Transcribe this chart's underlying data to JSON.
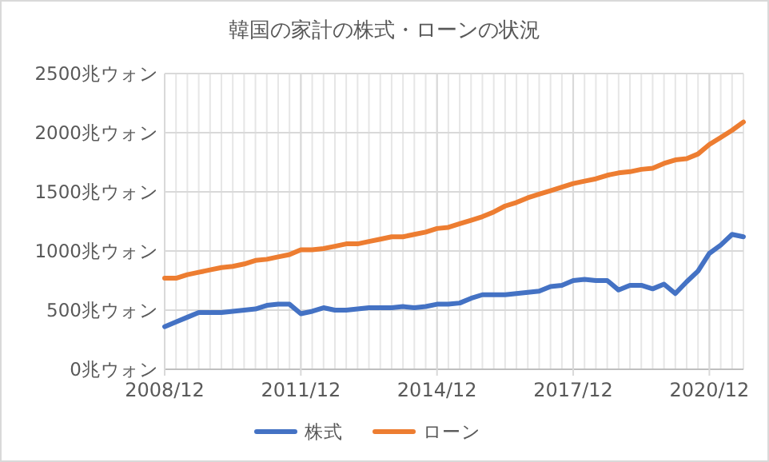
{
  "chart_data": {
    "type": "line",
    "title": "韓国の家計の株式・ローンの状況",
    "categories": [
      "2008/12",
      null,
      null,
      null,
      null,
      null,
      null,
      null,
      null,
      null,
      null,
      null,
      "2011/12",
      null,
      null,
      null,
      null,
      null,
      null,
      null,
      null,
      null,
      null,
      null,
      "2014/12",
      null,
      null,
      null,
      null,
      null,
      null,
      null,
      null,
      null,
      null,
      null,
      "2017/12",
      null,
      null,
      null,
      null,
      null,
      null,
      null,
      null,
      null,
      null,
      null,
      "2020/12",
      null,
      null,
      null
    ],
    "series": [
      {
        "name": "株式",
        "color": "#4472c4",
        "values": [
          360,
          400,
          440,
          480,
          480,
          480,
          490,
          500,
          510,
          540,
          550,
          550,
          470,
          490,
          520,
          500,
          500,
          510,
          520,
          520,
          520,
          530,
          520,
          530,
          550,
          550,
          560,
          600,
          630,
          630,
          630,
          640,
          650,
          660,
          700,
          710,
          750,
          760,
          750,
          750,
          670,
          710,
          710,
          680,
          720,
          640,
          740,
          830,
          980,
          1050,
          1140,
          1120
        ]
      },
      {
        "name": "ローン",
        "color": "#ed7d31",
        "values": [
          770,
          770,
          800,
          820,
          840,
          860,
          870,
          890,
          920,
          930,
          950,
          970,
          1010,
          1010,
          1020,
          1040,
          1060,
          1060,
          1080,
          1100,
          1120,
          1120,
          1140,
          1160,
          1190,
          1200,
          1230,
          1260,
          1290,
          1330,
          1380,
          1410,
          1450,
          1480,
          1510,
          1540,
          1570,
          1590,
          1610,
          1640,
          1660,
          1670,
          1690,
          1700,
          1740,
          1770,
          1780,
          1820,
          1900,
          1960,
          2020,
          2090
        ]
      }
    ],
    "ylim": [
      0,
      2500
    ],
    "yticks": [
      {
        "value": 0,
        "label": "0兆ウォン"
      },
      {
        "value": 500,
        "label": "500兆ウォン"
      },
      {
        "value": 1000,
        "label": "1000兆ウォン"
      },
      {
        "value": 1500,
        "label": "1500兆ウォン"
      },
      {
        "value": 2000,
        "label": "2000兆ウォン"
      },
      {
        "value": 2500,
        "label": "2500兆ウォン"
      }
    ],
    "grid": true,
    "legend": "bottom",
    "marker": "none",
    "line_style": "solid"
  }
}
